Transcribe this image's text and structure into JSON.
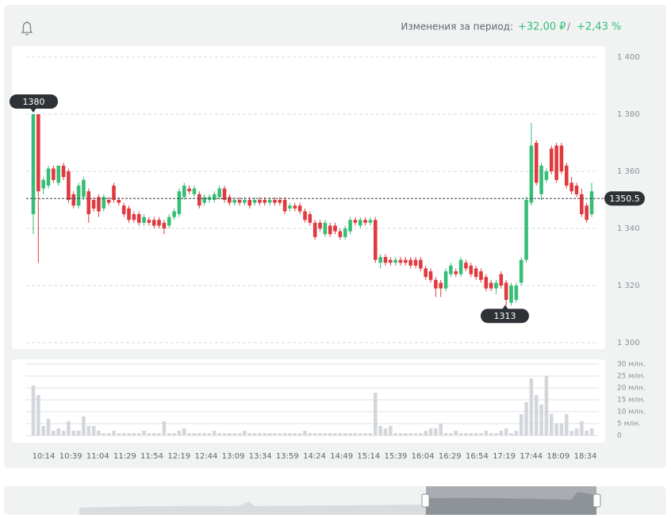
{
  "chart_data": {
    "type": "candlestick",
    "header": {
      "label": "Изменения за период:",
      "change": "+32,00 ₽",
      "separator": "/",
      "change_pct": "+2,43 %"
    },
    "up_color": "#36bd76",
    "down_color": "#e0393e",
    "volume_color": "#d3d7db",
    "ylim": [
      1300,
      1400
    ],
    "yticks": [
      {
        "value": 1300,
        "label": "1 300"
      },
      {
        "value": 1320,
        "label": "1 320"
      },
      {
        "value": 1340,
        "label": "1 340"
      },
      {
        "value": 1360,
        "label": "1 360"
      },
      {
        "value": 1380,
        "label": "1 380"
      },
      {
        "value": 1400,
        "label": "1 400"
      }
    ],
    "volume_ylim": [
      0,
      30
    ],
    "volume_yticks": [
      0,
      {
        "value": 5,
        "label": "5 млн."
      },
      {
        "value": 10,
        "label": "10 млн."
      },
      {
        "value": 15,
        "label": "15 млн."
      },
      {
        "value": 20,
        "label": "20 млн."
      },
      {
        "value": 25,
        "label": "25 млн."
      },
      {
        "value": 30,
        "label": "30 млн."
      }
    ],
    "time_labels": [
      "10:14",
      "10:39",
      "11:04",
      "11:29",
      "11:54",
      "12:19",
      "12:44",
      "13:09",
      "13:34",
      "13:59",
      "14:24",
      "14:49",
      "15:14",
      "15:39",
      "16:04",
      "16:29",
      "16:54",
      "17:19",
      "17:44",
      "18:09",
      "18:34"
    ],
    "max_label": 1380,
    "min_label": 1313,
    "last_price": 1350.5,
    "candles": [
      [
        1345,
        1380,
        1338,
        1380
      ],
      [
        1380,
        1380,
        1328,
        1353
      ],
      [
        1354,
        1358,
        1352,
        1357
      ],
      [
        1355,
        1362,
        1354,
        1361
      ],
      [
        1361,
        1362,
        1356,
        1357
      ],
      [
        1356,
        1362,
        1355,
        1362
      ],
      [
        1362,
        1363,
        1357,
        1358
      ],
      [
        1360,
        1361,
        1349,
        1350
      ],
      [
        1352,
        1353,
        1347,
        1348
      ],
      [
        1348,
        1356,
        1347,
        1355
      ],
      [
        1351,
        1358,
        1350,
        1357
      ],
      [
        1353,
        1354,
        1342,
        1345
      ],
      [
        1350,
        1351,
        1346,
        1347
      ],
      [
        1351,
        1352,
        1344,
        1346
      ],
      [
        1347,
        1352,
        1346,
        1351
      ],
      [
        1350,
        1351,
        1348,
        1349
      ],
      [
        1355,
        1356,
        1349,
        1350
      ],
      [
        1350,
        1351,
        1348,
        1349
      ],
      [
        1348,
        1349,
        1344,
        1345
      ],
      [
        1347,
        1348,
        1342,
        1343
      ],
      [
        1345,
        1346,
        1342,
        1343
      ],
      [
        1345,
        1346,
        1341,
        1342
      ],
      [
        1342,
        1345,
        1341,
        1344
      ],
      [
        1343,
        1344,
        1341,
        1342
      ],
      [
        1343,
        1344,
        1340,
        1341
      ],
      [
        1343,
        1344,
        1340,
        1341
      ],
      [
        1342,
        1343,
        1338,
        1340
      ],
      [
        1341,
        1345,
        1340,
        1344
      ],
      [
        1344,
        1347,
        1343,
        1346
      ],
      [
        1345,
        1354,
        1344,
        1353
      ],
      [
        1351,
        1356,
        1350,
        1355
      ],
      [
        1354,
        1355,
        1352,
        1353
      ],
      [
        1352,
        1355,
        1351,
        1354
      ],
      [
        1352,
        1353,
        1347,
        1348
      ],
      [
        1349,
        1352,
        1348,
        1351
      ],
      [
        1350,
        1352,
        1349,
        1351
      ],
      [
        1350,
        1353,
        1349,
        1352
      ],
      [
        1351,
        1355,
        1350,
        1354
      ],
      [
        1354,
        1355,
        1349,
        1350
      ],
      [
        1351,
        1352,
        1348,
        1349
      ],
      [
        1349,
        1351,
        1348,
        1350
      ],
      [
        1350,
        1351,
        1348,
        1349
      ],
      [
        1349,
        1351,
        1348,
        1350
      ],
      [
        1350,
        1351,
        1347,
        1348
      ],
      [
        1349,
        1351,
        1348,
        1350
      ],
      [
        1350,
        1351,
        1348,
        1349
      ],
      [
        1350,
        1351,
        1348,
        1349
      ],
      [
        1349,
        1351,
        1348,
        1350
      ],
      [
        1350,
        1351,
        1348,
        1349
      ],
      [
        1350,
        1351,
        1348,
        1349
      ],
      [
        1350,
        1351,
        1345,
        1346
      ],
      [
        1347,
        1349,
        1346,
        1348
      ],
      [
        1348,
        1349,
        1346,
        1347
      ],
      [
        1348,
        1349,
        1345,
        1346
      ],
      [
        1346,
        1347,
        1342,
        1343
      ],
      [
        1345,
        1346,
        1341,
        1342
      ],
      [
        1342,
        1343,
        1336,
        1337
      ],
      [
        1342,
        1343,
        1339,
        1340
      ],
      [
        1338,
        1343,
        1337,
        1342
      ],
      [
        1341,
        1342,
        1337,
        1338
      ],
      [
        1341,
        1342,
        1338,
        1339
      ],
      [
        1339,
        1340,
        1336,
        1337
      ],
      [
        1337,
        1341,
        1336,
        1340
      ],
      [
        1339,
        1344,
        1338,
        1343
      ],
      [
        1343,
        1344,
        1341,
        1342
      ],
      [
        1341,
        1344,
        1340,
        1343
      ],
      [
        1343,
        1344,
        1341,
        1342
      ],
      [
        1342,
        1344,
        1341,
        1343
      ],
      [
        1343,
        1344,
        1328,
        1329
      ],
      [
        1328,
        1331,
        1326,
        1330
      ],
      [
        1330,
        1331,
        1327,
        1328
      ],
      [
        1329,
        1330,
        1327,
        1328
      ],
      [
        1328,
        1330,
        1327,
        1329
      ],
      [
        1329,
        1330,
        1327,
        1328
      ],
      [
        1329,
        1330,
        1327,
        1328
      ],
      [
        1329,
        1330,
        1326,
        1327
      ],
      [
        1329,
        1330,
        1326,
        1327
      ],
      [
        1329,
        1330,
        1325,
        1326
      ],
      [
        1326,
        1327,
        1322,
        1323
      ],
      [
        1325,
        1326,
        1321,
        1322
      ],
      [
        1322,
        1323,
        1316,
        1319
      ],
      [
        1321,
        1322,
        1316,
        1319
      ],
      [
        1319,
        1326,
        1318,
        1325
      ],
      [
        1324,
        1328,
        1323,
        1327
      ],
      [
        1325,
        1326,
        1323,
        1324
      ],
      [
        1324,
        1330,
        1323,
        1329
      ],
      [
        1328,
        1329,
        1325,
        1326
      ],
      [
        1327,
        1328,
        1323,
        1324
      ],
      [
        1326,
        1327,
        1322,
        1323
      ],
      [
        1325,
        1326,
        1321,
        1322
      ],
      [
        1323,
        1324,
        1318,
        1319
      ],
      [
        1321,
        1322,
        1318,
        1319
      ],
      [
        1319,
        1322,
        1317,
        1321
      ],
      [
        1324,
        1325,
        1319,
        1320
      ],
      [
        1321,
        1322,
        1313,
        1315
      ],
      [
        1314,
        1321,
        1313,
        1320
      ],
      [
        1315,
        1321,
        1314,
        1320
      ],
      [
        1321,
        1330,
        1320,
        1329
      ],
      [
        1329,
        1351,
        1328,
        1350
      ],
      [
        1349,
        1377,
        1348,
        1369
      ],
      [
        1370,
        1371,
        1355,
        1356
      ],
      [
        1352,
        1363,
        1350,
        1362
      ],
      [
        1357,
        1361,
        1356,
        1360
      ],
      [
        1368,
        1369,
        1359,
        1360
      ],
      [
        1369,
        1370,
        1356,
        1357
      ],
      [
        1369,
        1370,
        1359,
        1360
      ],
      [
        1362,
        1363,
        1354,
        1355
      ],
      [
        1356,
        1358,
        1352,
        1353
      ],
      [
        1355,
        1356,
        1351,
        1352
      ],
      [
        1352,
        1354,
        1344,
        1345
      ],
      [
        1348,
        1349,
        1342,
        1343
      ],
      [
        1345,
        1356,
        1344,
        1353
      ]
    ],
    "volume": [
      21,
      17,
      4,
      7,
      2,
      3,
      2,
      6,
      2,
      2,
      8,
      4,
      4,
      2,
      1,
      1,
      2,
      1,
      1,
      1,
      1,
      1,
      2,
      1,
      1,
      1,
      6,
      1,
      1,
      2,
      3,
      1,
      1,
      1,
      1,
      1,
      2,
      1,
      1,
      1,
      1,
      1,
      2,
      1,
      1,
      1,
      1,
      1,
      1,
      1,
      1,
      1,
      1,
      1,
      2,
      1,
      1,
      1,
      1,
      1,
      1,
      1,
      1,
      1,
      1,
      1,
      1,
      1,
      18,
      4,
      3,
      4,
      1,
      1,
      1,
      1,
      1,
      1,
      2,
      3,
      3,
      5,
      1,
      1,
      2,
      1,
      1,
      1,
      1,
      1,
      2,
      1,
      1,
      2,
      3,
      1,
      2,
      9,
      14,
      24,
      17,
      13,
      25,
      9,
      5,
      5,
      9,
      2,
      3,
      6,
      2,
      3
    ]
  }
}
